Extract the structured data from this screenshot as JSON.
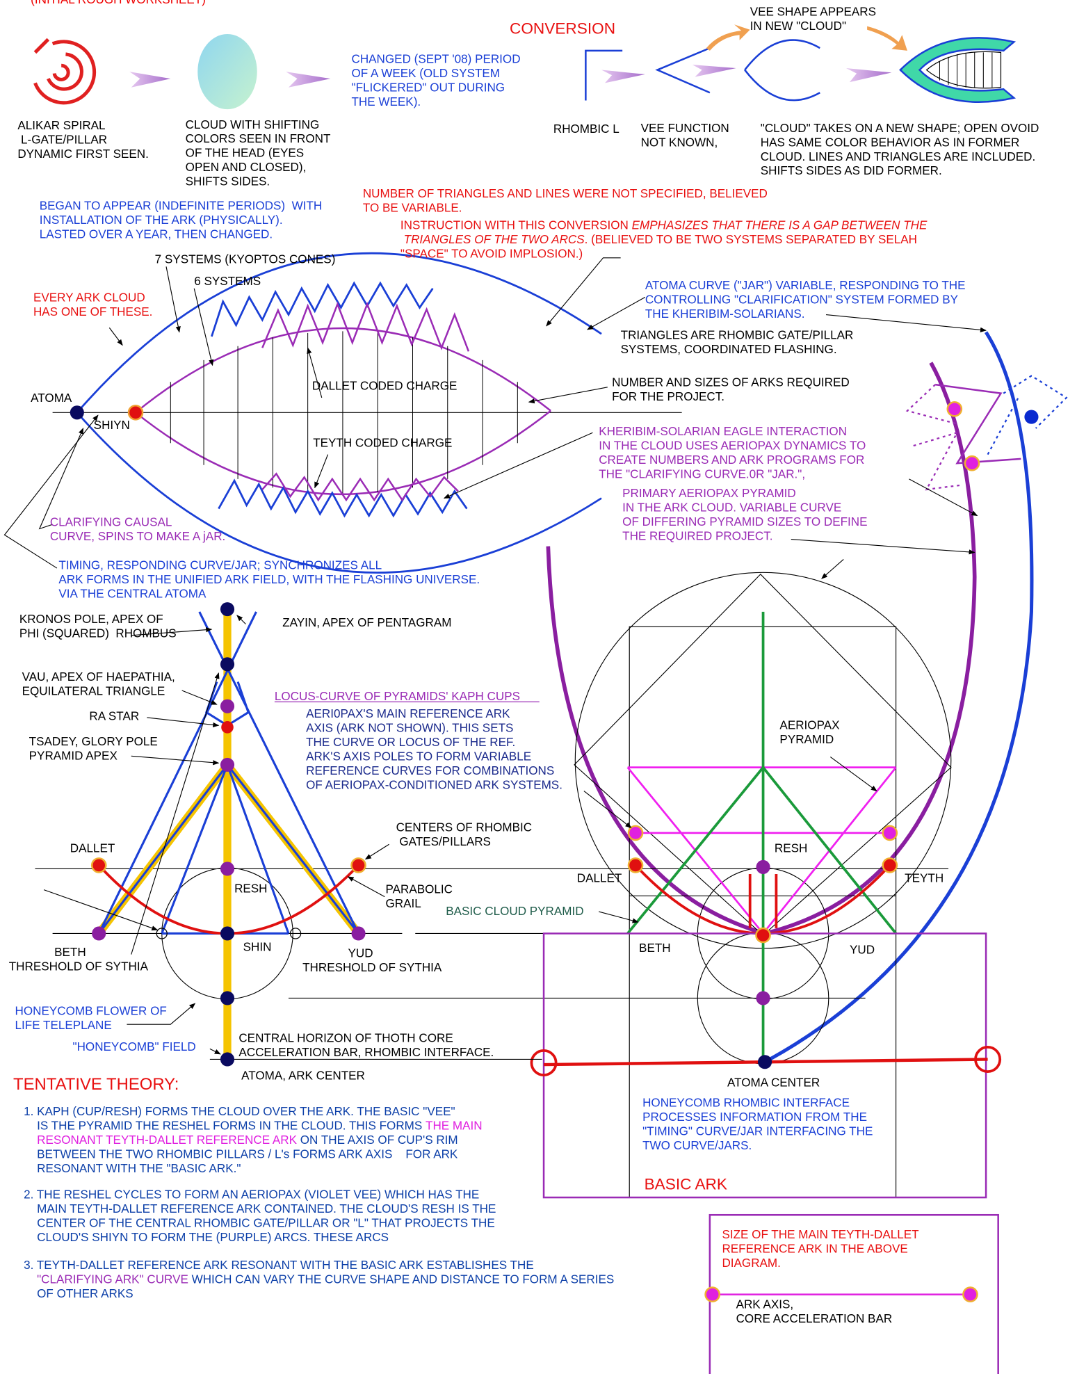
{
  "title": "(INITIAL ROUGH WORKSHEET)",
  "notes": {
    "conversion": [
      "CONVERSION"
    ],
    "vee_appears": [
      "VEE SHAPE APPEARS",
      "IN NEW \"CLOUD\""
    ],
    "changed": [
      "CHANGED (SEPT '08) PERIOD",
      "OF A WEEK (OLD SYSTEM",
      "\"FLICKERED\" OUT DURING",
      "THE WEEK)."
    ],
    "alikar": [
      "ALIKAR SPIRAL",
      " L-GATE/PILLAR",
      "DYNAMIC FIRST SEEN."
    ],
    "cloud_shifting": [
      "CLOUD WITH SHIFTING",
      "COLORS SEEN IN FRONT",
      "OF THE HEAD (EYES",
      "OPEN AND CLOSED),",
      "SHIFTS SIDES."
    ],
    "rhombic_l": [
      "RHOMBIC L"
    ],
    "vee_function": [
      "VEE FUNCTION",
      "NOT KNOWN,"
    ],
    "cloud_new_shape": [
      "\"CLOUD\" TAKES ON A NEW SHAPE; OPEN OVOID",
      "HAS SAME COLOR BEHAVIOR AS IN FORMER",
      "CLOUD. LINES AND TRIANGLES ARE INCLUDED.",
      "SHIFTS SIDES AS DID FORMER."
    ],
    "began": [
      "BEGAN TO APPEAR (INDEFINITE PERIODS)  WITH",
      "INSTALLATION OF THE ARK (PHYSICALLY).",
      "LASTED OVER A YEAR, THEN CHANGED."
    ],
    "number_triangles": [
      "NUMBER OF TRIANGLES AND LINES WERE NOT SPECIFIED, BELIEVED",
      "TO BE VARIABLE."
    ],
    "instruction": [
      [
        "INSTRUCTION WITH THIS CONVERSION ",
        "EMPHASIZES THAT THERE IS A GAP BETWEEN THE"
      ],
      [
        " TRIANGLES OF THE TWO ARCS",
        ". (BELIEVED TO BE TWO SYSTEMS SEPARATED BY SELAH"
      ],
      "\"SPACE\" TO AVOID IMPLOSION.)"
    ],
    "seven_systems": [
      "7 SYSTEMS (KYOPTOS CONES)"
    ],
    "six_systems": [
      "6 SYSTEMS"
    ],
    "every_ark": [
      "EVERY ARK CLOUD",
      "HAS ONE OF THESE."
    ],
    "atoma_curve": [
      "ATOMA CURVE (\"JAR\") VARIABLE, RESPONDING TO THE",
      "CONTROLLING \"CLARIFICATION\" SYSTEM FORMED BY",
      "THE KHERIBIM-SOLARIANS."
    ],
    "triangles_are": [
      "TRIANGLES ARE RHOMBIC GATE/PILLAR",
      "SYSTEMS, COORDINATED FLASHING."
    ],
    "dallet_coded": [
      "DALLET CODED CHARGE"
    ],
    "number_sizes": [
      "NUMBER AND SIZES OF ARKS REQUIRED",
      "FOR THE PROJECT."
    ],
    "atoma": [
      "ATOMA"
    ],
    "shiyn": [
      "SHIYN"
    ],
    "kheribim": [
      "KHERIBIM-SOLARIAN EAGLE INTERACTION",
      "IN THE CLOUD USES AERIOPAX DYNAMICS TO",
      "CREATE NUMBERS AND ARK PROGRAMS FOR",
      "THE \"CLARIFYING CURVE.0R \"JAR.\","
    ],
    "teyth_coded": [
      "TEYTH CODED CHARGE"
    ],
    "primary_aeriopax": [
      "PRIMARY AERIOPAX PYRAMID",
      "IN THE ARK CLOUD. VARIABLE CURVE",
      "OF DIFFERING PYRAMID SIZES TO DEFINE",
      "THE REQUIRED PROJECT."
    ],
    "clarifying_causal": [
      "CLARIFYING CAUSAL",
      "CURVE, SPINS TO MAKE A jAR."
    ],
    "timing": [
      "TIMING, RESPONDING CURVE/JAR; SYNCHRONIZES ALL",
      "ARK FORMS IN THE UNIFIED ARK FIELD, WITH THE FLASHING UNIVERSE.",
      "VIA THE CENTRAL ATOMA"
    ],
    "kronos": [
      "KRONOS POLE, APEX OF",
      "PHI (SQUARED)  RHOMBUS"
    ],
    "zayin": [
      "ZAYIN, APEX OF PENTAGRAM"
    ],
    "vau": [
      "VAU, APEX OF HAEPATHIA,",
      "EQUILATERAL TRIANGLE"
    ],
    "locus": [
      "LOCUS-CURVE OF PYRAMIDS' KAPH CUPS"
    ],
    "aeriopax_main": [
      "AERI0PAX'S MAIN REFERENCE ARK",
      "AXIS (ARK NOT SHOWN). THIS SETS",
      "THE CURVE OR LOCUS OF THE REF.",
      "ARK'S AXIS POLES TO FORM VARIABLE",
      "REFERENCE CURVES FOR COMBINATIONS",
      "OF AERIOPAX-CONDITIONED ARK SYSTEMS."
    ],
    "ra_star": [
      "RA STAR"
    ],
    "tsadey": [
      "TSADEY, GLORY POLE",
      "PYRAMID APEX"
    ],
    "aeriopax_pyramid": [
      "AERIOPAX",
      "PYRAMID"
    ],
    "centers": [
      "CENTERS OF RHOMBIC",
      " GATES/PILLARS"
    ],
    "dallet_left": [
      "DALLET"
    ],
    "resh_right": [
      "RESH"
    ],
    "dallet_right": [
      "DALLET"
    ],
    "teyth_right": [
      "TEYTH"
    ],
    "resh_left": [
      "RESH"
    ],
    "parabolic": [
      "PARABOLIC",
      "GRAIL"
    ],
    "basic_cloud_pyramid": [
      "BASIC CLOUD PYRAMID"
    ],
    "shin": [
      "SHIN"
    ],
    "beth_left": [
      "BETH",
      "THRESHOLD OF SYTHIA"
    ],
    "yud_left": [
      "YUD",
      "THRESHOLD OF SYTHIA"
    ],
    "beth_right": [
      "BETH"
    ],
    "yud_right": [
      "YUD"
    ],
    "honeycomb_flower": [
      "HONEYCOMB FLOWER OF",
      "LIFE TELEPLANE"
    ],
    "honeycomb_field": [
      "\"HONEYCOMB\" FIELD"
    ],
    "central_horizon": [
      "CENTRAL HORIZON OF THOTH CORE",
      "ACCELERATION BAR, RHOMBIC INTERFACE."
    ],
    "atoma_ark_center": [
      "ATOMA, ARK CENTER"
    ],
    "atoma_center": [
      "ATOMA CENTER"
    ],
    "tentative": [
      "TENTATIVE THEORY:"
    ],
    "theory_1": [
      "1. KAPH (CUP/RESH) FORMS THE CLOUD OVER THE ARK. THE BASIC \"VEE\"",
      [
        "    IS THE PYRAMID THE RESHEL FORMS IN THE CLOUD. THIS FORMS ",
        "THE MAIN"
      ],
      [
        "    RESONANT TEYTH-DALLET REFERENCE ARK",
        " ON THE AXIS OF CUP'S RIM"
      ],
      "    BETWEEN THE TWO RHOMBIC PILLARS / L's FORMS ARK AXIS    FOR ARK",
      "    RESONANT WITH THE \"BASIC ARK.\""
    ],
    "honeycomb_interface": [
      "HONEYCOMB RHOMBIC INTERFACE",
      "PROCESSES INFORMATION FROM THE",
      "\"TIMING\" CURVE/JAR INTERFACING THE",
      "TWO CURVE/JARS."
    ],
    "basic_ark": [
      "BASIC ARK"
    ],
    "theory_2": [
      "2. THE RESHEL CYCLES TO FORM AN AERIOPAX (VIOLET VEE) WHICH HAS THE",
      "    MAIN TEYTH-DALLET REFERENCE ARK CONTAINED. THE CLOUD'S RESH IS THE",
      "    CENTER OF THE CENTRAL RHOMBIC GATE/PILLAR OR \"L\" THAT PROJECTS THE",
      "    CLOUD'S SHIYN TO FORM THE (PURPLE) ARCS. THESE ARCS"
    ],
    "theory_3": [
      "3. TEYTH-DALLET REFERENCE ARK RESONANT WITH THE BASIC ARK ESTABLISHES THE",
      [
        "    \"CLARIFYING ARK\" CURVE",
        " WHICH CAN VARY THE CURVE SHAPE AND DISTANCE TO FORM A SERIES"
      ],
      "    OF OTHER ARKS"
    ],
    "size_main": [
      "SIZE OF THE MAIN TEYTH-DALLET",
      "REFERENCE ARK IN THE ABOVE",
      "DIAGRAM."
    ],
    "ark_axis": [
      "ARK AXIS,",
      "CORE ACCELERATION BAR"
    ]
  }
}
